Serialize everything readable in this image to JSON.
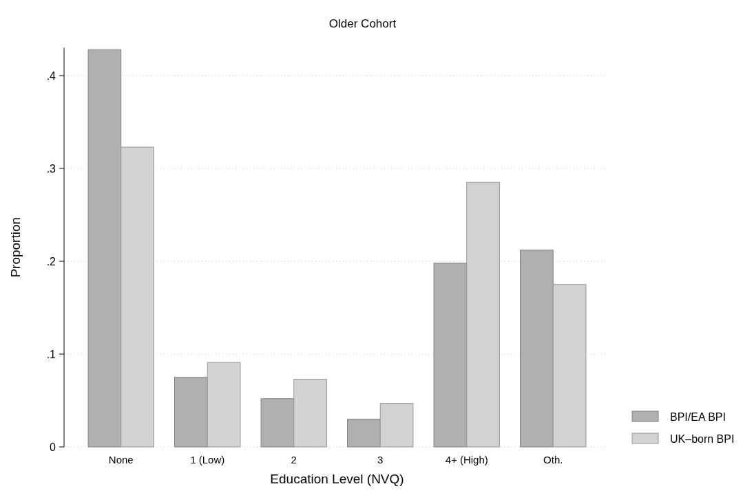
{
  "chart_data": {
    "type": "bar",
    "title": "Older Cohort",
    "xlabel": "Education Level (NVQ)",
    "ylabel": "Proportion",
    "categories": [
      "None",
      "1 (Low)",
      "2",
      "3",
      "4+ (High)",
      "Oth."
    ],
    "series": [
      {
        "name": "BPI/EA BPI",
        "color": "#b0b0b0",
        "values": [
          0.428,
          0.075,
          0.052,
          0.03,
          0.198,
          0.212
        ]
      },
      {
        "name": "UK–born BPI",
        "color": "#d2d2d2",
        "values": [
          0.323,
          0.091,
          0.073,
          0.047,
          0.285,
          0.175
        ]
      }
    ],
    "ylim": [
      0,
      0.43
    ],
    "yticks": [
      {
        "value": 0,
        "label": "0"
      },
      {
        "value": 0.1,
        "label": ".1"
      },
      {
        "value": 0.2,
        "label": ".2"
      },
      {
        "value": 0.3,
        "label": ".3"
      },
      {
        "value": 0.4,
        "label": ".4"
      }
    ],
    "grid": "y",
    "legend": "bottom right"
  }
}
